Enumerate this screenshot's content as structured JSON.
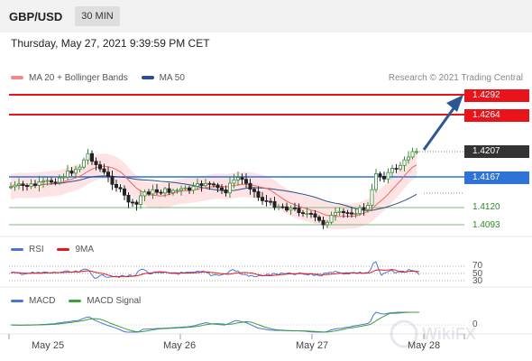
{
  "header": {
    "symbol": "GBP/USD",
    "timeframe": "30 MIN"
  },
  "datetime": "Thursday, May 27, 2021 9:39:59 PM CET",
  "main_legend": {
    "ma20": {
      "label": "MA 20 + Bollinger Bands",
      "color": "#f08a8a"
    },
    "ma50": {
      "label": "MA 50",
      "color": "#2b4f8e"
    }
  },
  "credit": "Research © 2021 Trading Central",
  "levels": {
    "r2": "1.4292",
    "r1": "1.4264",
    "last": "1.4207",
    "pivot": "1.4167",
    "s1": "1.4120",
    "s2": "1.4093"
  },
  "rsi_panel": {
    "rsi": {
      "label": "RSI",
      "color": "#4a74d9"
    },
    "ma9": {
      "label": "9MA",
      "color": "#e01a1a"
    },
    "levels": [
      "70",
      "50",
      "30"
    ]
  },
  "macd_panel": {
    "macd": {
      "label": "MACD",
      "color": "#4a74d9"
    },
    "signal": {
      "label": "MACD Signal",
      "color": "#3aa13a"
    },
    "zero": "0"
  },
  "x_axis": [
    "May 25",
    "May 26",
    "May 27",
    "May 28"
  ],
  "colors": {
    "resistance": "#e8141a",
    "pivot": "#2f73d6",
    "support": "#5aa85a",
    "arrow": "#2b5797"
  },
  "watermark": "WikiFX"
}
